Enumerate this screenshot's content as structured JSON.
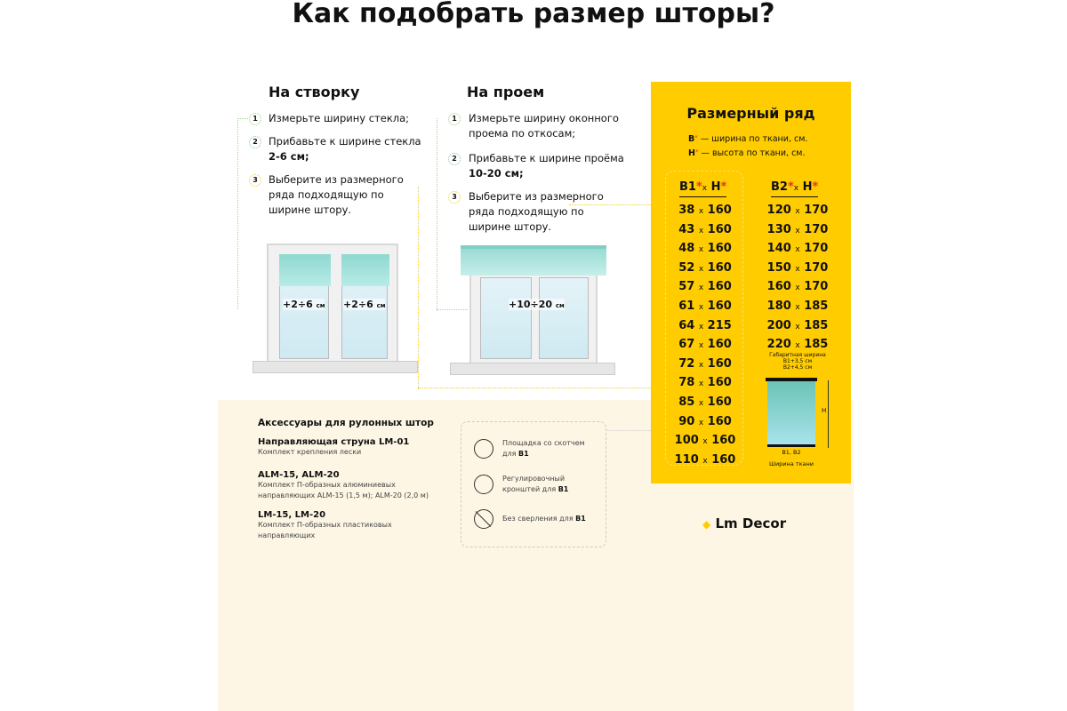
{
  "title": "Как подобрать размер шторы?",
  "sash": {
    "heading": "На створку",
    "steps": [
      {
        "n": "1",
        "text": "Измерьте ширину стекла;"
      },
      {
        "n": "2",
        "text": "Прибавьте к ширине стекла",
        "bold": "2-6 см;"
      },
      {
        "n": "3",
        "text": "Выберите из размерного ряда подходящую по ширине штору."
      }
    ],
    "measure_left": "+2÷6",
    "measure_right": "+2÷6",
    "unit": "см"
  },
  "opening": {
    "heading": "На проем",
    "steps": [
      {
        "n": "1",
        "text": "Измерьте ширину оконного проема по откосам;"
      },
      {
        "n": "2",
        "text": "Прибавьте к ширине проёма",
        "bold": "10-20 см;"
      },
      {
        "n": "3",
        "text": "Выберите из размерного ряда подходящую по ширине штору."
      }
    ],
    "measure": "+10÷20",
    "unit": "см"
  },
  "size_range": {
    "heading": "Размерный ряд",
    "legend_b": "— ширина по ткани, см.",
    "legend_h": "— высота по ткани, см.",
    "b_label": "B",
    "h_label": "H",
    "star": "*",
    "x": "x",
    "col1_header": {
      "b": "B1",
      "h": "H"
    },
    "col2_header": {
      "b": "B2",
      "h": "H"
    },
    "col1": [
      [
        "38",
        "160"
      ],
      [
        "43",
        "160"
      ],
      [
        "48",
        "160"
      ],
      [
        "52",
        "160"
      ],
      [
        "57",
        "160"
      ],
      [
        "61",
        "160"
      ],
      [
        "64",
        "215"
      ],
      [
        "67",
        "160"
      ],
      [
        "72",
        "160"
      ],
      [
        "78",
        "160"
      ],
      [
        "85",
        "160"
      ],
      [
        "90",
        "160"
      ],
      [
        "100",
        "160"
      ],
      [
        "110",
        "160"
      ]
    ],
    "col2": [
      [
        "120",
        "170"
      ],
      [
        "130",
        "170"
      ],
      [
        "140",
        "170"
      ],
      [
        "150",
        "170"
      ],
      [
        "160",
        "170"
      ],
      [
        "180",
        "185"
      ],
      [
        "200",
        "185"
      ],
      [
        "220",
        "185"
      ]
    ],
    "diagram": {
      "overall": "Габаритная ширина",
      "b1": "B1+3,5 см",
      "b2": "B2+4,5 см",
      "h": "H",
      "bottom": "B1, B2",
      "fabric": "Ширина ткани"
    }
  },
  "accessories": {
    "heading": "Аксессуары для рулонных штор",
    "items": [
      {
        "title": "Направляющая струна LM-01",
        "desc": "Комплект крепления лески"
      },
      {
        "title": "ALM-15, ALM-20",
        "desc": "Комплект П-образных алюминиевых направляющих ALM-15 (1,5 м); ALM-20 (2,0 м)"
      },
      {
        "title": "LM-15, LM-20",
        "desc": "Комплект П-образных пластиковых направляющих"
      }
    ]
  },
  "mounting": [
    {
      "icon": "tape-pad-icon",
      "text": "Площадка со скотчем для",
      "bold": "B1"
    },
    {
      "icon": "bracket-icon",
      "text": "Регулировочный кронштей для",
      "bold": "B1"
    },
    {
      "icon": "no-drill-icon",
      "text": "Без сверления для",
      "bold": "B1"
    }
  ],
  "brand": "Lm Decor",
  "colors": {
    "yellow": "#ffcc00",
    "cream": "#fdf6e4",
    "star": "#e8322b",
    "blind": "#9adbd3"
  }
}
